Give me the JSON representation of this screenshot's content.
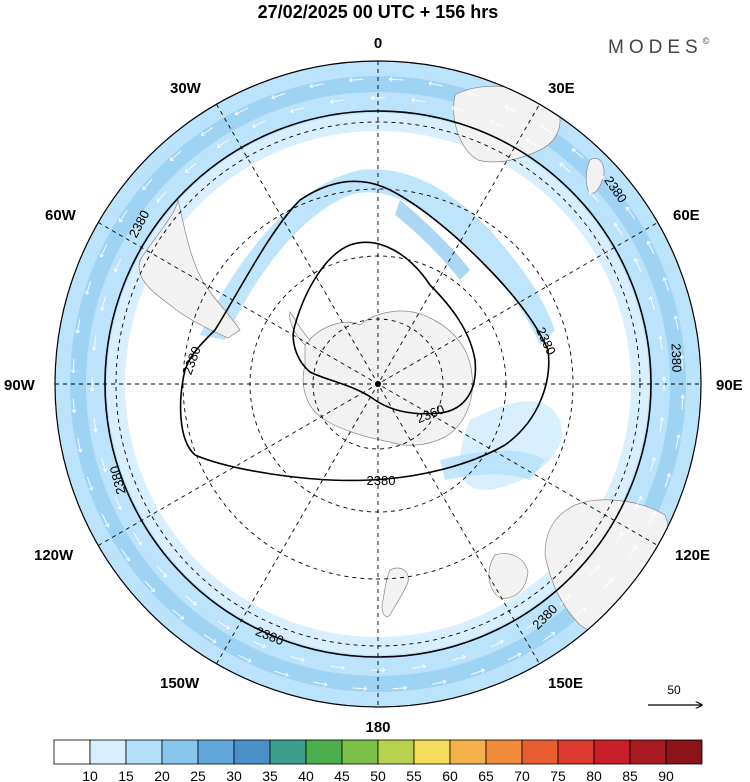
{
  "title": "27/02/2025  00 UTC  + 156 hrs",
  "brand": "MODES",
  "brand_mark": "©",
  "longitude_labels": {
    "top": "0",
    "bottom": "180",
    "left": "90W",
    "right": "90E",
    "upper_left_30": "30W",
    "upper_right_30": "30E",
    "upper_left_60": "60W",
    "upper_right_60": "60E",
    "lower_left_120": "120W",
    "lower_right_120": "120E",
    "lower_left_150": "150W",
    "lower_right_150": "150E"
  },
  "contour_labels": [
    "2380",
    "2380",
    "2380",
    "2380",
    "2380",
    "2380",
    "2380",
    "2380",
    "2360"
  ],
  "vector_reference": {
    "value": "50"
  },
  "colorbar": {
    "labels": [
      "10",
      "15",
      "20",
      "25",
      "30",
      "35",
      "40",
      "45",
      "50",
      "55",
      "60",
      "65",
      "70",
      "75",
      "80",
      "85",
      "90"
    ],
    "colors": [
      "#ffffff",
      "#d8efff",
      "#b4e0fb",
      "#88c6ee",
      "#63a8dc",
      "#4a8fc7",
      "#3e9e8c",
      "#4cae4c",
      "#7cc04a",
      "#b6d24e",
      "#f3dd5a",
      "#f4b04a",
      "#f08b3c",
      "#e95d33",
      "#dc3a2f",
      "#c81f2a",
      "#a81a22",
      "#8a1418"
    ]
  },
  "colors": {
    "jet_light": "#d8efff",
    "jet_mid": "#b4e0fb",
    "jet_dark": "#88c6ee",
    "land": "#f2f2f2",
    "contour": "#000000"
  }
}
